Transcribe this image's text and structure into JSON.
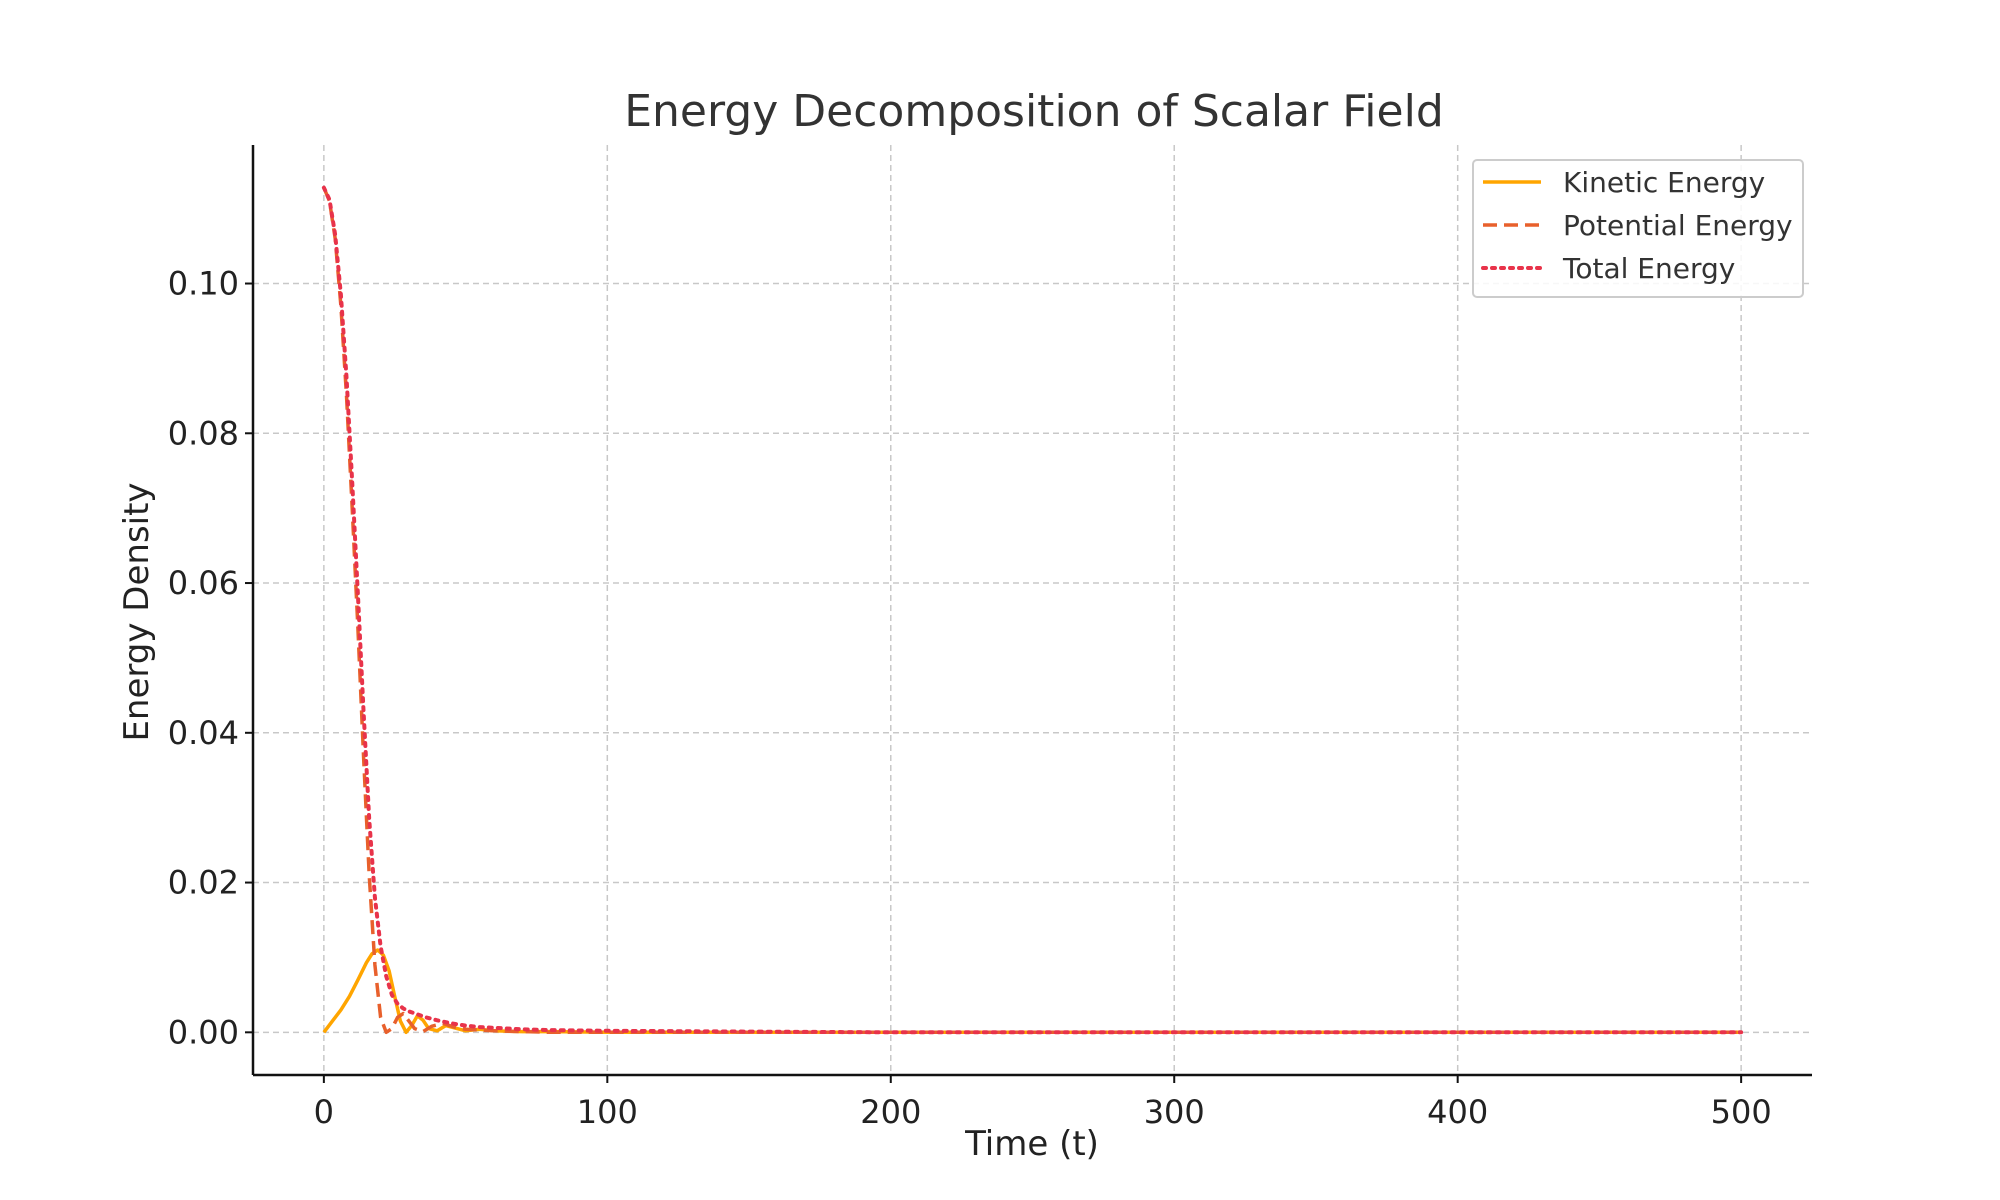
{
  "chart_data": {
    "type": "line",
    "title": "Energy Decomposition of Scalar Field",
    "xlabel": "Time (t)",
    "ylabel": "Energy Density",
    "xlim": [
      -25,
      525
    ],
    "ylim": [
      -0.0057,
      0.1185
    ],
    "xticks": [
      0,
      100,
      200,
      300,
      400,
      500
    ],
    "xtick_labels": [
      "0",
      "100",
      "200",
      "300",
      "400",
      "500"
    ],
    "yticks": [
      0.0,
      0.02,
      0.04,
      0.06,
      0.08,
      0.1
    ],
    "ytick_labels": [
      "0.00",
      "0.02",
      "0.04",
      "0.06",
      "0.08",
      "0.10"
    ],
    "grid": true,
    "legend_position": "upper right",
    "series": [
      {
        "name": "Kinetic Energy",
        "style": "solid",
        "color": "#FFA500",
        "x": [
          0,
          3,
          6,
          9,
          12,
          15,
          17,
          19,
          21,
          23,
          25,
          27,
          29,
          31,
          33,
          35,
          37,
          40,
          43,
          46,
          50,
          55,
          60,
          70,
          80,
          100,
          150,
          200,
          300,
          400,
          500
        ],
        "y": [
          0.0,
          0.0015,
          0.003,
          0.0048,
          0.007,
          0.0093,
          0.0105,
          0.011,
          0.0103,
          0.0082,
          0.0048,
          0.0015,
          0.0,
          0.0009,
          0.0022,
          0.0016,
          0.0005,
          0.0002,
          0.0009,
          0.0006,
          0.0002,
          0.0004,
          0.0002,
          0.0001,
          0.0001,
          0.0,
          0.0,
          0.0,
          0.0,
          0.0,
          0.0
        ]
      },
      {
        "name": "Potential Energy",
        "style": "dashed",
        "color": "#E8602C",
        "x": [
          0,
          2,
          4,
          6,
          8,
          10,
          12,
          14,
          16,
          18,
          20,
          22,
          24,
          26,
          28,
          30,
          32,
          35,
          38,
          42,
          46,
          50,
          55,
          60,
          70,
          80,
          100,
          150,
          200,
          300,
          400,
          500
        ],
        "y": [
          0.1128,
          0.111,
          0.106,
          0.097,
          0.085,
          0.07,
          0.054,
          0.037,
          0.021,
          0.009,
          0.002,
          0.0,
          0.0005,
          0.002,
          0.0025,
          0.0015,
          0.0005,
          0.0001,
          0.0008,
          0.0012,
          0.0007,
          0.0004,
          0.0003,
          0.0002,
          0.0001,
          0.0,
          0.0,
          0.0,
          0.0,
          0.0,
          0.0,
          0.0
        ]
      },
      {
        "name": "Total Energy",
        "style": "dotted",
        "color": "#E8334A",
        "x": [
          0,
          2,
          4,
          6,
          8,
          10,
          12,
          14,
          16,
          18,
          20,
          22,
          24,
          26,
          28,
          30,
          33,
          36,
          40,
          45,
          50,
          55,
          60,
          70,
          80,
          100,
          150,
          200,
          300,
          400,
          500
        ],
        "y": [
          0.1128,
          0.1112,
          0.1065,
          0.0985,
          0.0875,
          0.0735,
          0.0585,
          0.043,
          0.0285,
          0.018,
          0.0115,
          0.0075,
          0.005,
          0.0038,
          0.0032,
          0.0028,
          0.0024,
          0.002,
          0.0016,
          0.0012,
          0.0009,
          0.0007,
          0.0006,
          0.0004,
          0.0003,
          0.0002,
          0.0001,
          0.0,
          0.0,
          0.0,
          0.0
        ]
      }
    ]
  }
}
